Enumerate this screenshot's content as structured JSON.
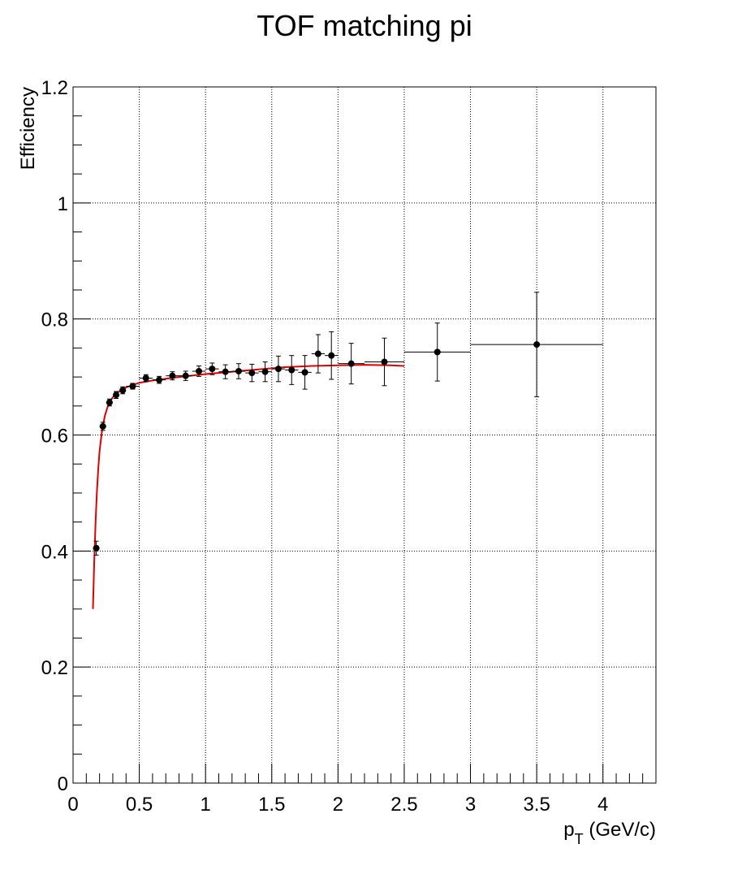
{
  "chart_data": {
    "type": "scatter",
    "title": "TOF matching pi",
    "xlabel": "p_T (GeV/c)",
    "xlabel_main": "p",
    "xlabel_sub": "T",
    "xlabel_rest": " (GeV/c)",
    "ylabel": "Efficiency",
    "xlim": [
      0,
      4.4
    ],
    "ylim": [
      0,
      1.2
    ],
    "grid": true,
    "x_ticks": [
      {
        "v": 0,
        "label": "0"
      },
      {
        "v": 0.5,
        "label": "0.5"
      },
      {
        "v": 1,
        "label": "1"
      },
      {
        "v": 1.5,
        "label": "1.5"
      },
      {
        "v": 2,
        "label": "2"
      },
      {
        "v": 2.5,
        "label": "2.5"
      },
      {
        "v": 3,
        "label": "3"
      },
      {
        "v": 3.5,
        "label": "3.5"
      },
      {
        "v": 4,
        "label": "4"
      }
    ],
    "y_ticks": [
      {
        "v": 0,
        "label": "0"
      },
      {
        "v": 0.2,
        "label": "0.2"
      },
      {
        "v": 0.4,
        "label": "0.4"
      },
      {
        "v": 0.6,
        "label": "0.6"
      },
      {
        "v": 0.8,
        "label": "0.8"
      },
      {
        "v": 1,
        "label": "1"
      },
      {
        "v": 1.2,
        "label": "1.2"
      }
    ],
    "series": [
      {
        "marker_color": "#000000",
        "points": [
          {
            "x": 0.175,
            "xerr": 0.025,
            "y": 0.405,
            "yerr": 0.012
          },
          {
            "x": 0.225,
            "xerr": 0.025,
            "y": 0.615,
            "yerr": 0.007
          },
          {
            "x": 0.275,
            "xerr": 0.025,
            "y": 0.656,
            "yerr": 0.006
          },
          {
            "x": 0.325,
            "xerr": 0.025,
            "y": 0.669,
            "yerr": 0.006
          },
          {
            "x": 0.375,
            "xerr": 0.025,
            "y": 0.677,
            "yerr": 0.006
          },
          {
            "x": 0.45,
            "xerr": 0.05,
            "y": 0.684,
            "yerr": 0.005
          },
          {
            "x": 0.55,
            "xerr": 0.05,
            "y": 0.698,
            "yerr": 0.006
          },
          {
            "x": 0.65,
            "xerr": 0.05,
            "y": 0.695,
            "yerr": 0.006
          },
          {
            "x": 0.75,
            "xerr": 0.05,
            "y": 0.702,
            "yerr": 0.007
          },
          {
            "x": 0.85,
            "xerr": 0.05,
            "y": 0.702,
            "yerr": 0.008
          },
          {
            "x": 0.95,
            "xerr": 0.05,
            "y": 0.71,
            "yerr": 0.009
          },
          {
            "x": 1.05,
            "xerr": 0.05,
            "y": 0.714,
            "yerr": 0.01
          },
          {
            "x": 1.15,
            "xerr": 0.05,
            "y": 0.709,
            "yerr": 0.012
          },
          {
            "x": 1.25,
            "xerr": 0.05,
            "y": 0.71,
            "yerr": 0.013
          },
          {
            "x": 1.35,
            "xerr": 0.05,
            "y": 0.707,
            "yerr": 0.015
          },
          {
            "x": 1.45,
            "xerr": 0.05,
            "y": 0.709,
            "yerr": 0.017
          },
          {
            "x": 1.55,
            "xerr": 0.05,
            "y": 0.714,
            "yerr": 0.022
          },
          {
            "x": 1.65,
            "xerr": 0.05,
            "y": 0.712,
            "yerr": 0.025
          },
          {
            "x": 1.75,
            "xerr": 0.05,
            "y": 0.708,
            "yerr": 0.029
          },
          {
            "x": 1.85,
            "xerr": 0.05,
            "y": 0.74,
            "yerr": 0.033
          },
          {
            "x": 1.95,
            "xerr": 0.05,
            "y": 0.737,
            "yerr": 0.041
          },
          {
            "x": 2.1,
            "xerr": 0.1,
            "y": 0.723,
            "yerr": 0.035
          },
          {
            "x": 2.35,
            "xerr": 0.15,
            "y": 0.726,
            "yerr": 0.041
          },
          {
            "x": 2.75,
            "xerr": 0.25,
            "y": 0.743,
            "yerr": 0.05
          },
          {
            "x": 3.5,
            "xerr": 0.5,
            "y": 0.756,
            "yerr": 0.09
          }
        ]
      },
      {
        "type": "line",
        "color": "#e00000",
        "points": [
          {
            "x": 0.15,
            "y": 0.3
          },
          {
            "x": 0.16,
            "y": 0.383
          },
          {
            "x": 0.17,
            "y": 0.45
          },
          {
            "x": 0.18,
            "y": 0.502
          },
          {
            "x": 0.19,
            "y": 0.541
          },
          {
            "x": 0.2,
            "y": 0.572
          },
          {
            "x": 0.22,
            "y": 0.61
          },
          {
            "x": 0.24,
            "y": 0.633
          },
          {
            "x": 0.26,
            "y": 0.648
          },
          {
            "x": 0.28,
            "y": 0.658
          },
          {
            "x": 0.3,
            "y": 0.665
          },
          {
            "x": 0.33,
            "y": 0.672
          },
          {
            "x": 0.36,
            "y": 0.677
          },
          {
            "x": 0.4,
            "y": 0.682
          },
          {
            "x": 0.45,
            "y": 0.686
          },
          {
            "x": 0.5,
            "y": 0.69
          },
          {
            "x": 0.6,
            "y": 0.694
          },
          {
            "x": 0.7,
            "y": 0.697
          },
          {
            "x": 0.8,
            "y": 0.7
          },
          {
            "x": 1.0,
            "y": 0.705
          },
          {
            "x": 1.2,
            "y": 0.709
          },
          {
            "x": 1.4,
            "y": 0.713
          },
          {
            "x": 1.6,
            "y": 0.717
          },
          {
            "x": 1.8,
            "y": 0.719
          },
          {
            "x": 2.0,
            "y": 0.72
          },
          {
            "x": 2.2,
            "y": 0.721
          },
          {
            "x": 2.4,
            "y": 0.72
          },
          {
            "x": 2.5,
            "y": 0.719
          }
        ]
      }
    ]
  }
}
